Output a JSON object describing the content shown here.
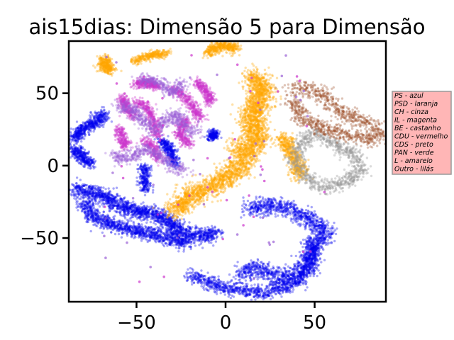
{
  "chart_data": {
    "type": "scatter",
    "title": "ais15dias: Dimensão 5 para Dimensão",
    "xlabel": "",
    "ylabel": "",
    "xlim": [
      -88,
      90
    ],
    "ylim": [
      -94,
      86
    ],
    "x_ticks": [
      {
        "value": -50,
        "label": "−50"
      },
      {
        "value": 0,
        "label": "0"
      },
      {
        "value": 50,
        "label": "50"
      }
    ],
    "y_ticks": [
      {
        "value": 50,
        "label": "50"
      },
      {
        "value": 0,
        "label": "0"
      },
      {
        "value": -50,
        "label": "−50"
      }
    ],
    "grid": false,
    "legend_position": "right",
    "legend": [
      "PS - azul",
      "PSD - laranja",
      "CH - cinza",
      "IL - magenta",
      "BE - castanho",
      "CDU - vermelho",
      "CDS - preto",
      "PAN - verde",
      "L - amarelo",
      "Outro - lilás"
    ],
    "colors": {
      "PS": "#0000ee",
      "PSD": "#ffa500",
      "CH": "#999999",
      "IL": "#cc33cc",
      "BE": "#a0522d",
      "Outro": "#9a5fd6",
      "legend_bg": "#ffb6b6",
      "legend_border": "#999999"
    },
    "series": [
      {
        "party": "PS",
        "color": "#0000ee",
        "spread": 2.0,
        "count": 520,
        "path": [
          [
            -86,
            18
          ],
          [
            -82,
            23
          ],
          [
            -78,
            27
          ],
          [
            -72,
            31
          ],
          [
            -68,
            36
          ]
        ]
      },
      {
        "party": "PS",
        "color": "#0000ee",
        "spread": 2.0,
        "count": 320,
        "path": [
          [
            -85,
            12
          ],
          [
            -80,
            5
          ],
          [
            -76,
            1
          ]
        ]
      },
      {
        "party": "PS",
        "color": "#0000ee",
        "spread": 2.6,
        "count": 1700,
        "path": [
          [
            -85,
            -16
          ],
          [
            -76,
            -18
          ],
          [
            -67,
            -22
          ],
          [
            -60,
            -27
          ],
          [
            -55,
            -30
          ],
          [
            -48,
            -32
          ],
          [
            -40,
            -33
          ],
          [
            -34,
            -37
          ],
          [
            -29,
            -42
          ],
          [
            -24,
            -46
          ],
          [
            -18,
            -48
          ],
          [
            -12,
            -49
          ],
          [
            -5,
            -46
          ]
        ]
      },
      {
        "party": "PS",
        "color": "#0000ee",
        "spread": 2.4,
        "count": 1100,
        "path": [
          [
            -80,
            -25
          ],
          [
            -73,
            -36
          ],
          [
            -65,
            -40
          ],
          [
            -55,
            -44
          ],
          [
            -45,
            -46
          ],
          [
            -35,
            -49
          ],
          [
            -27,
            -52
          ],
          [
            -20,
            -54
          ]
        ]
      },
      {
        "party": "PS",
        "color": "#0000ee",
        "spread": 2.4,
        "count": 1100,
        "path": [
          [
            -20,
            -76
          ],
          [
            -10,
            -80
          ],
          [
            0,
            -85
          ],
          [
            10,
            -86
          ],
          [
            22,
            -88
          ],
          [
            32,
            -84
          ],
          [
            40,
            -80
          ],
          [
            46,
            -72
          ],
          [
            50,
            -62
          ],
          [
            48,
            -52
          ]
        ]
      },
      {
        "party": "PS",
        "color": "#0000ee",
        "spread": 3.0,
        "count": 1600,
        "path": [
          [
            12,
            -30
          ],
          [
            22,
            -28
          ],
          [
            32,
            -28
          ],
          [
            42,
            -34
          ],
          [
            50,
            -40
          ],
          [
            56,
            -44
          ],
          [
            52,
            -52
          ],
          [
            48,
            -60
          ],
          [
            44,
            -70
          ],
          [
            38,
            -76
          ],
          [
            30,
            -78
          ],
          [
            22,
            -73
          ],
          [
            15,
            -70
          ],
          [
            8,
            -76
          ]
        ]
      },
      {
        "party": "PS",
        "color": "#0000ee",
        "spread": 1.6,
        "count": 200,
        "path": [
          [
            -8,
            20
          ],
          [
            -6,
            22
          ]
        ]
      },
      {
        "party": "PS",
        "color": "#0000ee",
        "spread": 1.6,
        "count": 350,
        "path": [
          [
            -36,
            18
          ],
          [
            -32,
            12
          ],
          [
            -30,
            6
          ],
          [
            -28,
            0
          ]
        ]
      },
      {
        "party": "PS",
        "color": "#0000ee",
        "spread": 1.6,
        "count": 250,
        "path": [
          [
            -45,
            0
          ],
          [
            -46,
            -10
          ],
          [
            -44,
            -18
          ]
        ]
      },
      {
        "party": "PSD",
        "color": "#ffa500",
        "spread": 1.8,
        "count": 320,
        "path": [
          [
            -68,
            74
          ],
          [
            -68,
            68
          ],
          [
            -64,
            66
          ]
        ]
      },
      {
        "party": "PSD",
        "color": "#ffa500",
        "spread": 1.4,
        "count": 300,
        "path": [
          [
            -52,
            72
          ],
          [
            -42,
            76
          ],
          [
            -32,
            78
          ]
        ]
      },
      {
        "party": "PSD",
        "color": "#ffa500",
        "spread": 2.0,
        "count": 400,
        "path": [
          [
            -10,
            78
          ],
          [
            -4,
            82
          ],
          [
            2,
            83
          ],
          [
            6,
            80
          ]
        ]
      },
      {
        "party": "PSD",
        "color": "#ffa500",
        "spread": 3.5,
        "count": 1500,
        "path": [
          [
            15,
            62
          ],
          [
            21,
            52
          ],
          [
            18,
            42
          ],
          [
            14,
            32
          ],
          [
            18,
            22
          ],
          [
            16,
            12
          ]
        ]
      },
      {
        "party": "PSD",
        "color": "#ffa500",
        "spread": 3.5,
        "count": 1500,
        "path": [
          [
            6,
            14
          ],
          [
            12,
            9
          ],
          [
            8,
            -2
          ],
          [
            -2,
            -10
          ],
          [
            -12,
            -18
          ],
          [
            -20,
            -20
          ],
          [
            -24,
            -28
          ],
          [
            -30,
            -30
          ]
        ]
      },
      {
        "party": "PSD",
        "color": "#ffa500",
        "spread": 2.4,
        "count": 500,
        "path": [
          [
            32,
            20
          ],
          [
            36,
            10
          ],
          [
            40,
            2
          ],
          [
            42,
            -8
          ]
        ]
      },
      {
        "party": "CH",
        "color": "#999999",
        "spread": 2.4,
        "count": 900,
        "path": [
          [
            50,
            24
          ],
          [
            44,
            18
          ],
          [
            40,
            10
          ],
          [
            40,
            0
          ],
          [
            46,
            -8
          ],
          [
            52,
            -14
          ],
          [
            60,
            -14
          ],
          [
            70,
            -10
          ],
          [
            76,
            -2
          ],
          [
            72,
            8
          ],
          [
            64,
            12
          ],
          [
            58,
            16
          ],
          [
            52,
            22
          ]
        ]
      },
      {
        "party": "BE",
        "color": "#a0522d",
        "spread": 2.6,
        "count": 1000,
        "path": [
          [
            38,
            54
          ],
          [
            48,
            52
          ],
          [
            56,
            48
          ],
          [
            62,
            40
          ],
          [
            70,
            34
          ],
          [
            78,
            30
          ],
          [
            85,
            26
          ],
          [
            86,
            20
          ],
          [
            82,
            18
          ],
          [
            72,
            20
          ],
          [
            62,
            24
          ],
          [
            54,
            26
          ],
          [
            46,
            30
          ],
          [
            40,
            38
          ],
          [
            38,
            46
          ]
        ]
      },
      {
        "party": "IL",
        "color": "#cc33cc",
        "spread": 1.6,
        "count": 350,
        "path": [
          [
            -50,
            56
          ],
          [
            -44,
            58
          ],
          [
            -38,
            54
          ]
        ]
      },
      {
        "party": "IL",
        "color": "#cc33cc",
        "spread": 1.6,
        "count": 260,
        "path": [
          [
            -58,
            48
          ],
          [
            -56,
            40
          ],
          [
            -52,
            34
          ]
        ]
      },
      {
        "party": "IL",
        "color": "#cc33cc",
        "spread": 1.6,
        "count": 220,
        "path": [
          [
            -60,
            26
          ],
          [
            -58,
            18
          ],
          [
            -56,
            12
          ]
        ]
      },
      {
        "party": "IL",
        "color": "#cc33cc",
        "spread": 1.6,
        "count": 350,
        "path": [
          [
            -50,
            44
          ],
          [
            -44,
            40
          ],
          [
            -40,
            30
          ],
          [
            -38,
            20
          ]
        ]
      },
      {
        "party": "IL",
        "color": "#cc33cc",
        "spread": 1.6,
        "count": 330,
        "path": [
          [
            -30,
            54
          ],
          [
            -24,
            48
          ],
          [
            -18,
            40
          ],
          [
            -14,
            32
          ]
        ]
      },
      {
        "party": "IL",
        "color": "#cc33cc",
        "spread": 1.6,
        "count": 300,
        "path": [
          [
            -22,
            32
          ],
          [
            -26,
            22
          ],
          [
            -20,
            14
          ]
        ]
      },
      {
        "party": "IL",
        "color": "#cc33cc",
        "spread": 1.6,
        "count": 280,
        "path": [
          [
            -16,
            58
          ],
          [
            -10,
            50
          ],
          [
            -8,
            44
          ]
        ]
      },
      {
        "party": "IL",
        "color": "#cc33cc",
        "spread": 1.6,
        "count": 220,
        "path": [
          [
            -46,
            18
          ],
          [
            -40,
            12
          ],
          [
            -38,
            4
          ]
        ]
      },
      {
        "party": "Outro",
        "color": "#9a5fd6",
        "spread": 2.2,
        "count": 600,
        "path": [
          [
            -60,
            42
          ],
          [
            -52,
            38
          ],
          [
            -46,
            30
          ],
          [
            -40,
            24
          ],
          [
            -34,
            30
          ],
          [
            -28,
            36
          ],
          [
            -22,
            26
          ],
          [
            -16,
            22
          ]
        ]
      },
      {
        "party": "Outro",
        "color": "#9a5fd6",
        "spread": 2.0,
        "count": 450,
        "path": [
          [
            -64,
            10
          ],
          [
            -58,
            4
          ],
          [
            -50,
            8
          ],
          [
            -44,
            12
          ],
          [
            -36,
            6
          ],
          [
            -30,
            0
          ],
          [
            -22,
            -4
          ]
        ]
      },
      {
        "party": "Outro",
        "color": "#9a5fd6",
        "spread": 1.8,
        "count": 300,
        "path": [
          [
            -48,
            60
          ],
          [
            -38,
            58
          ],
          [
            -30,
            50
          ],
          [
            -24,
            58
          ]
        ]
      }
    ],
    "scatter": [
      {
        "party": "IL",
        "color": "#cc33cc",
        "count": 40,
        "x": [
          -70,
          60
        ],
        "y": [
          -85,
          80
        ]
      },
      {
        "party": "Outro",
        "color": "#9a5fd6",
        "count": 40,
        "x": [
          -70,
          60
        ],
        "y": [
          -85,
          80
        ]
      }
    ]
  }
}
